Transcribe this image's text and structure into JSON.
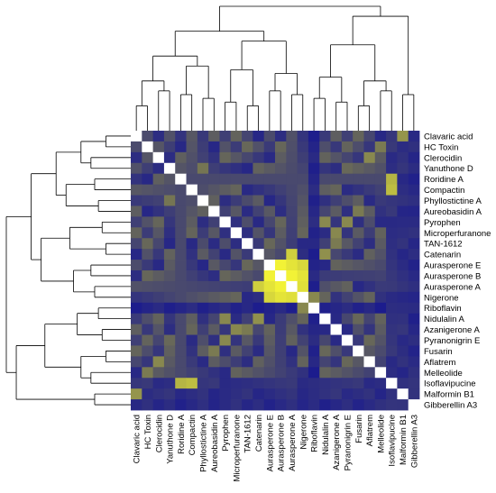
{
  "chart_data": {
    "type": "heatmap",
    "title": "",
    "xlabel": "",
    "ylabel": "",
    "dendrograms": true,
    "colors": {
      "low": "#0a0a9a",
      "mid": "#6d6d55",
      "high": "#ffff33",
      "diagonal": "#ffffff"
    },
    "x_labels": [
      "Clavaric acid",
      "HC Toxin",
      "Clerocidin",
      "Yanuthone D",
      "Roridine A",
      "Compactin",
      "Phyllostictine A",
      "Aureobasidin A",
      "Pyrophen",
      "Microperfuranone",
      "TAN-1612",
      "Catenarin",
      "Aurasperone E",
      "Aurasperone B",
      "Aurasperone A",
      "Nigerone",
      "Riboflavin",
      "Nidulalin A",
      "Azanigerone A",
      "Pyranonigrin E",
      "Fusarin",
      "Aflatrem",
      "Melleolide",
      "Isoflavipucine",
      "Malformin B1",
      "Gibberellin A3"
    ],
    "y_labels": [
      "Clavaric acid",
      "HC Toxin",
      "Clerocidin",
      "Yanuthone D",
      "Roridine A",
      "Compactin",
      "Phyllostictine A",
      "Aureobasidin A",
      "Pyrophen",
      "Microperfuranone",
      "TAN-1612",
      "Catenarin",
      "Aurasperone E",
      "Aurasperone B",
      "Aurasperone A",
      "Nigerone",
      "Riboflavin",
      "Nidulalin A",
      "Azanigerone A",
      "Pyranonigrin E",
      "Fusarin",
      "Aflatrem",
      "Melleolide",
      "Isoflavipucine",
      "Malformin B1",
      "Gibberellin A3"
    ],
    "value_range": [
      0,
      1
    ],
    "strong_pairs": [
      {
        "a": "Aurasperone E",
        "b": "Aurasperone B",
        "value": 0.95
      },
      {
        "a": "Aurasperone E",
        "b": "Aurasperone A",
        "value": 0.9
      },
      {
        "a": "Aurasperone B",
        "b": "Aurasperone A",
        "value": 0.95
      },
      {
        "a": "Aurasperone E",
        "b": "Nigerone",
        "value": 0.85
      },
      {
        "a": "Aurasperone B",
        "b": "Nigerone",
        "value": 0.9
      },
      {
        "a": "Aurasperone A",
        "b": "Nigerone",
        "value": 0.88
      },
      {
        "a": "Aurasperone A",
        "b": "Catenarin",
        "value": 0.82
      },
      {
        "a": "Nigerone",
        "b": "Riboflavin",
        "value": 0.55
      },
      {
        "a": "Compactin",
        "b": "Isoflavipucine",
        "value": 0.75
      },
      {
        "a": "Roridine A",
        "b": "Isoflavipucine",
        "value": 0.72
      },
      {
        "a": "Clavaric acid",
        "b": "Malformin B1",
        "value": 0.6
      },
      {
        "a": "Microperfuranone",
        "b": "Azanigerone A",
        "value": 0.55
      },
      {
        "a": "TAN-1612",
        "b": "Azanigerone A",
        "value": 0.5
      },
      {
        "a": "Nidulalin A",
        "b": "Pyrophen",
        "value": 0.55
      },
      {
        "a": "Nidulalin A",
        "b": "Catenarin",
        "value": 0.58
      },
      {
        "a": "Pyranonigrin E",
        "b": "Pyrophen",
        "value": 0.55
      },
      {
        "a": "Aflatrem",
        "b": "Clerocidin",
        "value": 0.55
      },
      {
        "a": "Fusarin",
        "b": "Aureobasidin A",
        "value": 0.5
      },
      {
        "a": "HC Toxin",
        "b": "Melleolide",
        "value": 0.5
      },
      {
        "a": "Yanuthone D",
        "b": "Phyllostictine A",
        "value": 0.48
      }
    ],
    "low_pairs": [
      {
        "a": "Riboflavin",
        "b": "*",
        "value": 0.08
      },
      {
        "a": "Gibberellin A3",
        "b": "*",
        "value": 0.1
      },
      {
        "a": "Malformin B1",
        "b": "*",
        "value": 0.12
      },
      {
        "a": "Isoflavipucine",
        "b": "*",
        "value": 0.14
      }
    ],
    "default_value": 0.28,
    "dendrogram_col": [
      {
        "a": 12,
        "b": 13,
        "h": 0.9
      },
      {
        "a": 14,
        "b": 15,
        "h": 0.85
      },
      {
        "a": 17,
        "b": 18,
        "h": 0.82
      },
      {
        "a": 21,
        "b": 22,
        "h": 0.86
      },
      {
        "a": 6,
        "b": 7,
        "h": 0.87
      },
      {
        "a": 8,
        "b": 9,
        "h": 0.84
      },
      {
        "a": 3,
        "b": 4,
        "h": 0.8
      }
    ]
  }
}
